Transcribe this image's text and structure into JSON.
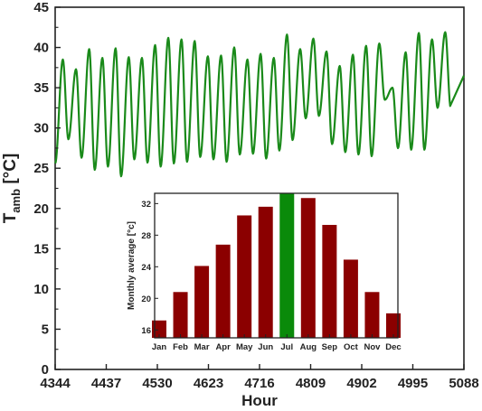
{
  "colors": {
    "line": "#1a8a1a",
    "bar": "#8b0000",
    "bar_highlight": "#0a8a0a",
    "axis": "#222222"
  },
  "chart_data": [
    {
      "type": "line",
      "xlabel": "Hour",
      "ylabel_main": "T",
      "ylabel_sub": "amb",
      "ylabel_unit": " [°C]",
      "xlim": [
        4344,
        5088
      ],
      "ylim": [
        0,
        45
      ],
      "x_ticks": [
        4344,
        4437,
        4530,
        4623,
        4716,
        4809,
        4902,
        4995,
        5088
      ],
      "y_ticks": [
        0,
        5,
        10,
        15,
        20,
        25,
        30,
        35,
        40,
        45
      ],
      "series": [
        {
          "daily_max": [
            38.5,
            37.3,
            39.8,
            38.7,
            39.9,
            38.8,
            38.7,
            40.3,
            41.2,
            41.0,
            40.8,
            38.9,
            39.0,
            40.0,
            38.5,
            39.2,
            38.7,
            41.6,
            39.8,
            41.1,
            39.5,
            37.7,
            39.1,
            40.2,
            40.5,
            35.0,
            39.4,
            41.8,
            41.0,
            41.9
          ],
          "daily_min": [
            25.6,
            28.6,
            26.3,
            24.8,
            25.2,
            24.0,
            26.1,
            25.7,
            25.2,
            25.6,
            25.8,
            26.4,
            26.1,
            25.8,
            26.7,
            26.8,
            26.2,
            27.2,
            28.5,
            31.2,
            31.5,
            28.0,
            27.0,
            26.7,
            26.5,
            33.5,
            27.5,
            27.3,
            27.3,
            32.5
          ]
        }
      ]
    },
    {
      "type": "bar",
      "ylabel": "Monthly average [°c]",
      "categories": [
        "Jan",
        "Feb",
        "Mar",
        "Apr",
        "May",
        "Jun",
        "Jul",
        "Aug",
        "Sep",
        "Oct",
        "Nov",
        "Dec"
      ],
      "values": [
        17.2,
        20.8,
        24.1,
        26.8,
        30.5,
        31.6,
        33.3,
        32.7,
        29.3,
        24.9,
        20.8,
        18.1
      ],
      "highlight": "Jul",
      "ylim": [
        15,
        33.3
      ],
      "y_ticks": [
        16,
        20,
        24,
        28,
        32
      ]
    }
  ]
}
